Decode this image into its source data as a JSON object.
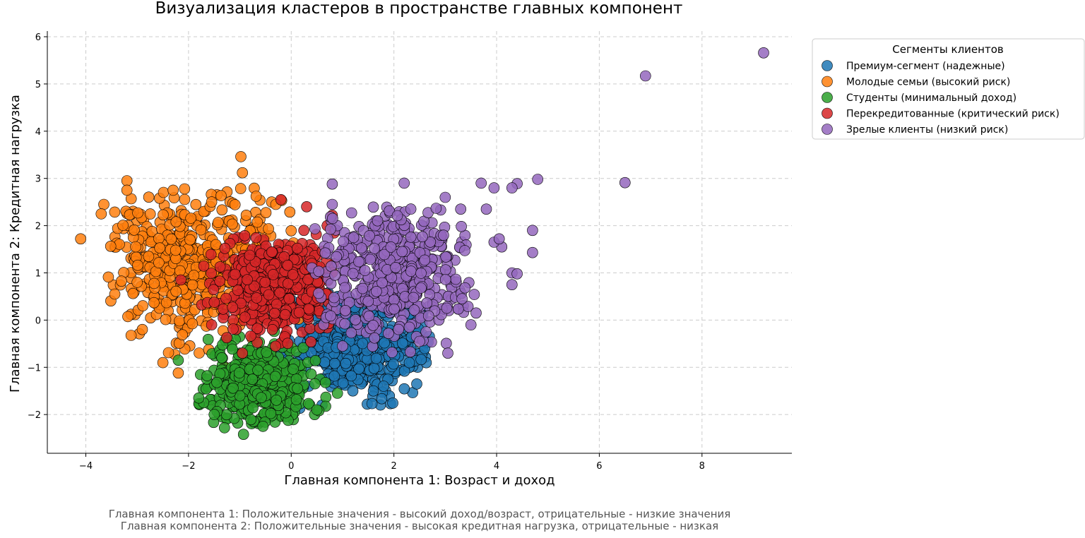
{
  "chart_data": {
    "type": "scatter",
    "title": "Визуализация кластеров в пространстве главных компонент",
    "xlabel": "Главная компонента 1: Возраст и доход",
    "ylabel": "Главная компонента 2: Кредитная нагрузка",
    "xlim": [
      -4.75,
      9.75
    ],
    "ylim": [
      -2.82,
      6.12
    ],
    "xticks": [
      -4,
      -2,
      0,
      2,
      4,
      6,
      8
    ],
    "yticks": [
      -2,
      -1,
      0,
      1,
      2,
      3,
      4,
      5,
      6
    ],
    "grid": true,
    "legend": {
      "title": "Сегменты клиентов",
      "placement": "outside-top-right"
    },
    "notes": [
      "Главная компонента 1: Положительные значения - высокий доход/возраст, отрицательные - низкие значения",
      "Главная компонента 2: Положительные значения - высокая кредитная нагрузка, отрицательные - низкая"
    ],
    "series": [
      {
        "name": "Премиум-сегмент (надежные)",
        "color": "#1f77b4",
        "cloud": {
          "count": 520,
          "cx": 1.4,
          "cy": -0.55,
          "sx": 0.65,
          "sy": 0.55,
          "xmin": -0.2,
          "xmax": 2.7,
          "ymin": -1.9,
          "ymax": 0.6
        },
        "points": [
          [
            1.2,
            -1.5
          ],
          [
            1.6,
            -1.5
          ],
          [
            1.5,
            0.6
          ],
          [
            2.0,
            -0.3
          ],
          [
            2.3,
            -0.9
          ],
          [
            0.3,
            -0.2
          ],
          [
            1.8,
            -1.4
          ],
          [
            2.6,
            -0.6
          ],
          [
            0.6,
            -1.8
          ],
          [
            0.9,
            0.5
          ]
        ]
      },
      {
        "name": "Молодые семьи (высокий риск)",
        "color": "#ff7f0e",
        "cloud": {
          "count": 520,
          "cx": -1.9,
          "cy": 1.2,
          "sx": 0.85,
          "sy": 0.8,
          "xmin": -3.6,
          "xmax": 0.2,
          "ymin": -1.0,
          "ymax": 2.8
        },
        "points": [
          [
            -4.1,
            1.72
          ],
          [
            -0.98,
            3.46
          ],
          [
            -0.95,
            3.12
          ],
          [
            -3.2,
            2.95
          ],
          [
            -3.2,
            2.75
          ],
          [
            -3.65,
            2.45
          ],
          [
            -3.7,
            2.25
          ],
          [
            -2.3,
            2.75
          ],
          [
            -2.25,
            1.48
          ],
          [
            -2.2,
            -1.12
          ],
          [
            -2.5,
            -0.9
          ],
          [
            -1.55,
            2.5
          ],
          [
            -0.3,
            2.45
          ],
          [
            -2.9,
            -0.2
          ],
          [
            -3.0,
            0.8
          ]
        ]
      },
      {
        "name": "Студенты (минимальный доход)",
        "color": "#2ca02c",
        "cloud": {
          "count": 420,
          "cx": -0.65,
          "cy": -1.35,
          "sx": 0.55,
          "sy": 0.45,
          "xmin": -1.85,
          "xmax": 1.0,
          "ymin": -2.2,
          "ymax": -0.2
        },
        "points": [
          [
            -0.93,
            -2.42
          ],
          [
            -1.3,
            -2.28
          ],
          [
            -0.55,
            -2.25
          ],
          [
            -1.5,
            -2.0
          ],
          [
            -2.2,
            -0.85
          ],
          [
            -0.45,
            0.0
          ],
          [
            -1.8,
            -1.65
          ],
          [
            0.5,
            -1.9
          ],
          [
            0.9,
            -1.55
          ]
        ]
      },
      {
        "name": "Перекредитованные (критический риск)",
        "color": "#d62728",
        "cloud": {
          "count": 420,
          "cx": -0.35,
          "cy": 0.75,
          "sx": 0.6,
          "sy": 0.55,
          "xmin": -1.8,
          "xmax": 0.9,
          "ymin": -0.6,
          "ymax": 2.0
        },
        "points": [
          [
            -0.2,
            2.55
          ],
          [
            0.3,
            2.4
          ],
          [
            0.8,
            2.22
          ],
          [
            0.7,
            2.0
          ],
          [
            -2.15,
            0.85
          ],
          [
            1.05,
            0.2
          ],
          [
            -0.95,
            -0.7
          ],
          [
            -1.55,
            -0.1
          ],
          [
            0.4,
            1.2
          ]
        ]
      },
      {
        "name": "Зрелые клиенты (низкий риск)",
        "color": "#9467bd",
        "cloud": {
          "count": 460,
          "cx": 2.0,
          "cy": 0.95,
          "sx": 0.8,
          "sy": 0.7,
          "xmin": 0.4,
          "xmax": 3.6,
          "ymin": -0.7,
          "ymax": 2.5
        },
        "points": [
          [
            9.2,
            5.66
          ],
          [
            6.9,
            5.17
          ],
          [
            6.5,
            2.91
          ],
          [
            4.8,
            2.98
          ],
          [
            4.4,
            2.89
          ],
          [
            4.3,
            2.8
          ],
          [
            3.95,
            2.8
          ],
          [
            3.7,
            2.9
          ],
          [
            3.8,
            2.35
          ],
          [
            4.7,
            1.9
          ],
          [
            4.7,
            1.43
          ],
          [
            4.3,
            1.0
          ],
          [
            4.3,
            0.75
          ],
          [
            4.4,
            0.98
          ],
          [
            4.1,
            1.55
          ],
          [
            3.95,
            1.65
          ],
          [
            4.05,
            1.72
          ],
          [
            2.2,
            2.9
          ],
          [
            0.8,
            2.88
          ],
          [
            0.8,
            2.45
          ],
          [
            3.0,
            2.6
          ],
          [
            3.3,
            2.35
          ],
          [
            3.5,
            -0.1
          ],
          [
            3.05,
            -0.7
          ],
          [
            2.5,
            -0.45
          ],
          [
            2.3,
            -0.15
          ],
          [
            1.0,
            -0.55
          ],
          [
            3.6,
            0.15
          ]
        ]
      }
    ]
  }
}
